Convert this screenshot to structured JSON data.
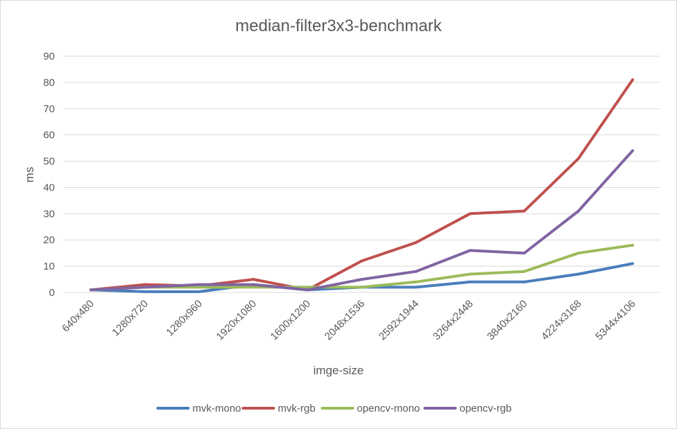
{
  "chart_data": {
    "type": "line",
    "title": "median-filter3x3-benchmark",
    "xlabel": "imge-size",
    "ylabel": "ms",
    "ylim": [
      0,
      90
    ],
    "yticks": [
      "0",
      "10",
      "20",
      "30",
      "40",
      "50",
      "60",
      "70",
      "80",
      "90"
    ],
    "categories": [
      "640x480",
      "1280x720",
      "1280x960",
      "1920x1080",
      "1600x1200",
      "2048x1536",
      "2592x1944",
      "3264x2448",
      "3840x2160",
      "4224x3168",
      "5344x4106"
    ],
    "grid": true,
    "legend_position": "bottom",
    "series": [
      {
        "name": "mvk-mono",
        "color": "#4a7ebb",
        "values": [
          1,
          0.3,
          0.3,
          3,
          1,
          2,
          2,
          4,
          4,
          7,
          11
        ]
      },
      {
        "name": "mvk-rgb",
        "color": "#c0504d",
        "values": [
          1,
          3,
          2.5,
          5,
          1,
          12,
          19,
          30,
          31,
          51,
          81
        ]
      },
      {
        "name": "opencv-mono",
        "color": "#9bbb59",
        "values": [
          1,
          2,
          2,
          2,
          2,
          2,
          4,
          7,
          8,
          15,
          18
        ]
      },
      {
        "name": "opencv-rgb",
        "color": "#8064a2",
        "values": [
          1,
          2,
          3,
          3,
          1,
          5,
          8,
          16,
          15,
          31,
          54
        ]
      }
    ]
  }
}
